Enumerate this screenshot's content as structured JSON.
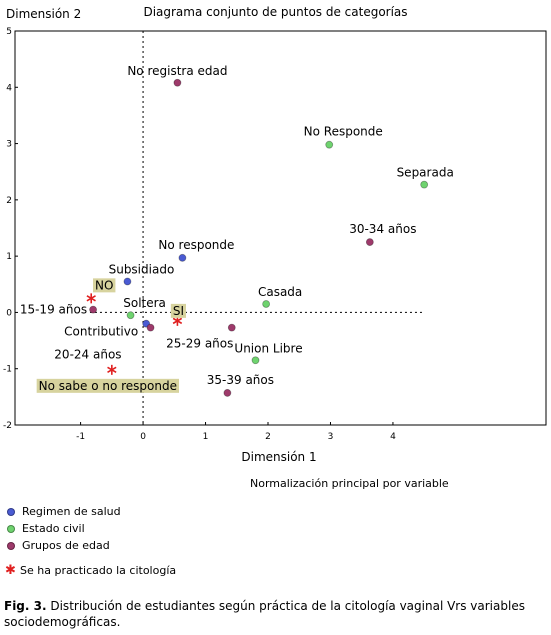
{
  "chart_data": {
    "type": "scatter",
    "title": "Diagrama conjunto de puntos de categorías",
    "xlabel": "Dimensión 1",
    "ylabel": "Dimensión 2",
    "note": "Normalización principal por variable",
    "xlim": [
      -2.05,
      6.45
    ],
    "ylim": [
      -2,
      5
    ],
    "xticks": [
      -1,
      0,
      1,
      2,
      3,
      4
    ],
    "yticks": [
      -2,
      -1,
      0,
      1,
      2,
      3,
      4,
      5
    ],
    "reference_lines": {
      "x": 0,
      "y": 0
    },
    "legend_position": "bottom-left",
    "series": [
      {
        "name": "Regimen de salud",
        "color": "#4a5bd3",
        "symbol": "circle",
        "points": [
          {
            "label": "No responde",
            "x": 0.63,
            "y": 0.97
          },
          {
            "label": "Subsidiado",
            "x": -0.25,
            "y": 0.55
          },
          {
            "label": "Contributivo",
            "x": 0.05,
            "y": -0.2
          }
        ]
      },
      {
        "name": "Estado civil",
        "color": "#6fd36f",
        "symbol": "circle",
        "points": [
          {
            "label": "No Responde",
            "x": 2.98,
            "y": 2.98
          },
          {
            "label": "Separada",
            "x": 4.5,
            "y": 2.27
          },
          {
            "label": "Casada",
            "x": 1.97,
            "y": 0.15
          },
          {
            "label": "Soltera",
            "x": -0.2,
            "y": -0.05
          },
          {
            "label": "Union Libre",
            "x": 1.8,
            "y": -0.85
          }
        ]
      },
      {
        "name": "Grupos de edad",
        "color": "#9e3a6b",
        "symbol": "circle",
        "points": [
          {
            "label": "No registra edad",
            "x": 0.55,
            "y": 4.08
          },
          {
            "label": "30-34 años",
            "x": 3.63,
            "y": 1.25
          },
          {
            "label": "15-19 años",
            "x": -0.8,
            "y": 0.05
          },
          {
            "label": "20-24 años",
            "x": 0.12,
            "y": -0.27
          },
          {
            "label": "25-29 años",
            "x": 1.42,
            "y": -0.27
          },
          {
            "label": "35-39 años",
            "x": 1.35,
            "y": -1.43
          }
        ]
      },
      {
        "name": "Se ha practicado la citología",
        "color": "#e02020",
        "symbol": "star",
        "points": [
          {
            "label": "NO",
            "x": -0.83,
            "y": 0.25
          },
          {
            "label": "SI",
            "x": 0.55,
            "y": -0.15
          },
          {
            "label": "No sabe o no responde",
            "x": -0.5,
            "y": -1.02
          }
        ]
      }
    ]
  },
  "caption": {
    "prefix": "Fig. 3.",
    "text": " Distribución de estudiantes según práctica de la citología vaginal Vrs variables sociodemográficas."
  }
}
